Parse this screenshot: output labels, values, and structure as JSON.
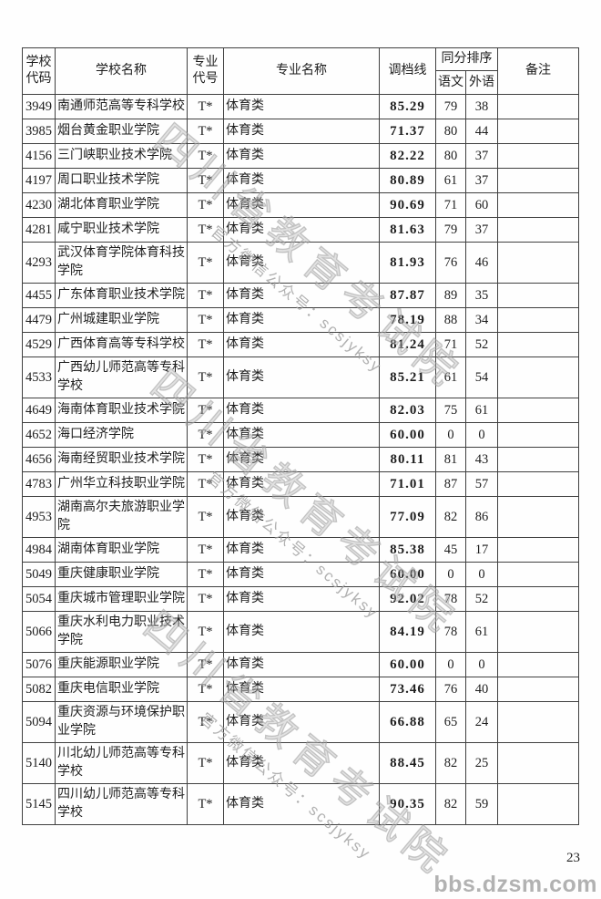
{
  "page": {
    "number": "23",
    "site_watermark": "bbs.dzsm.com"
  },
  "colors": {
    "table_border": "#404040",
    "text": "#1d1d1d",
    "watermark_gray": "#c3c3c3",
    "site_watermark_gray": "#b2b2b2"
  },
  "watermark": {
    "big_text": "四川省教育考试院",
    "small_text": "官方微信公众号：scsjyksy"
  },
  "table": {
    "headers": {
      "school_code": "学校代码",
      "school_name": "学校名称",
      "major_code": "专业代号",
      "major_name": "专业名称",
      "score_line": "调档线",
      "tie_break": "同分排序",
      "chinese": "语文",
      "foreign_lang": "外语",
      "remark": "备注"
    },
    "rows": [
      {
        "code": "3949",
        "name": "南通师范高等专科学校",
        "major_code": "T*",
        "major_name": "体育类",
        "score": "85.29",
        "chinese": "79",
        "foreign": "38",
        "remark": ""
      },
      {
        "code": "3985",
        "name": "烟台黄金职业学院",
        "major_code": "T*",
        "major_name": "体育类",
        "score": "71.37",
        "chinese": "80",
        "foreign": "44",
        "remark": ""
      },
      {
        "code": "4156",
        "name": "三门峡职业技术学院",
        "major_code": "T*",
        "major_name": "体育类",
        "score": "82.22",
        "chinese": "80",
        "foreign": "37",
        "remark": ""
      },
      {
        "code": "4197",
        "name": "周口职业技术学院",
        "major_code": "T*",
        "major_name": "体育类",
        "score": "80.89",
        "chinese": "61",
        "foreign": "37",
        "remark": ""
      },
      {
        "code": "4230",
        "name": "湖北体育职业学院",
        "major_code": "T*",
        "major_name": "体育类",
        "score": "90.69",
        "chinese": "71",
        "foreign": "60",
        "remark": ""
      },
      {
        "code": "4281",
        "name": "咸宁职业技术学院",
        "major_code": "T*",
        "major_name": "体育类",
        "score": "81.63",
        "chinese": "79",
        "foreign": "37",
        "remark": ""
      },
      {
        "code": "4293",
        "name": "武汉体育学院体育科技学院",
        "major_code": "T*",
        "major_name": "体育类",
        "score": "81.93",
        "chinese": "76",
        "foreign": "46",
        "remark": ""
      },
      {
        "code": "4455",
        "name": "广东体育职业技术学院",
        "major_code": "T*",
        "major_name": "体育类",
        "score": "87.87",
        "chinese": "89",
        "foreign": "35",
        "remark": ""
      },
      {
        "code": "4479",
        "name": "广州城建职业学院",
        "major_code": "T*",
        "major_name": "体育类",
        "score": "78.19",
        "chinese": "88",
        "foreign": "34",
        "remark": ""
      },
      {
        "code": "4529",
        "name": "广西体育高等专科学校",
        "major_code": "T*",
        "major_name": "体育类",
        "score": "81.24",
        "chinese": "71",
        "foreign": "52",
        "remark": ""
      },
      {
        "code": "4533",
        "name": "广西幼儿师范高等专科学校",
        "major_code": "T*",
        "major_name": "体育类",
        "score": "85.21",
        "chinese": "61",
        "foreign": "54",
        "remark": ""
      },
      {
        "code": "4649",
        "name": "海南体育职业技术学院",
        "major_code": "T*",
        "major_name": "体育类",
        "score": "82.03",
        "chinese": "75",
        "foreign": "61",
        "remark": ""
      },
      {
        "code": "4652",
        "name": "海口经济学院",
        "major_code": "T*",
        "major_name": "体育类",
        "score": "60.00",
        "chinese": "0",
        "foreign": "0",
        "remark": ""
      },
      {
        "code": "4656",
        "name": "海南经贸职业技术学院",
        "major_code": "T*",
        "major_name": "体育类",
        "score": "80.11",
        "chinese": "81",
        "foreign": "43",
        "remark": ""
      },
      {
        "code": "4783",
        "name": "广州华立科技职业学院",
        "major_code": "T*",
        "major_name": "体育类",
        "score": "71.01",
        "chinese": "87",
        "foreign": "57",
        "remark": ""
      },
      {
        "code": "4953",
        "name": "湖南高尔夫旅游职业学院",
        "major_code": "T*",
        "major_name": "体育类",
        "score": "77.09",
        "chinese": "82",
        "foreign": "86",
        "remark": ""
      },
      {
        "code": "4984",
        "name": "湖南体育职业学院",
        "major_code": "T*",
        "major_name": "体育类",
        "score": "85.38",
        "chinese": "45",
        "foreign": "17",
        "remark": ""
      },
      {
        "code": "5049",
        "name": "重庆健康职业学院",
        "major_code": "T*",
        "major_name": "体育类",
        "score": "60.00",
        "chinese": "0",
        "foreign": "0",
        "remark": ""
      },
      {
        "code": "5054",
        "name": "重庆城市管理职业学院",
        "major_code": "T*",
        "major_name": "体育类",
        "score": "92.02",
        "chinese": "78",
        "foreign": "52",
        "remark": ""
      },
      {
        "code": "5066",
        "name": "重庆水利电力职业技术学院",
        "major_code": "T*",
        "major_name": "体育类",
        "score": "84.19",
        "chinese": "78",
        "foreign": "61",
        "remark": ""
      },
      {
        "code": "5076",
        "name": "重庆能源职业学院",
        "major_code": "T*",
        "major_name": "体育类",
        "score": "60.00",
        "chinese": "0",
        "foreign": "0",
        "remark": ""
      },
      {
        "code": "5082",
        "name": "重庆电信职业学院",
        "major_code": "T*",
        "major_name": "体育类",
        "score": "73.46",
        "chinese": "76",
        "foreign": "40",
        "remark": ""
      },
      {
        "code": "5094",
        "name": "重庆资源与环境保护职业学院",
        "major_code": "T*",
        "major_name": "体育类",
        "score": "66.88",
        "chinese": "65",
        "foreign": "24",
        "remark": ""
      },
      {
        "code": "5140",
        "name": "川北幼儿师范高等专科学校",
        "major_code": "T*",
        "major_name": "体育类",
        "score": "88.45",
        "chinese": "82",
        "foreign": "25",
        "remark": ""
      },
      {
        "code": "5145",
        "name": "四川幼儿师范高等专科学校",
        "major_code": "T*",
        "major_name": "体育类",
        "score": "90.35",
        "chinese": "82",
        "foreign": "59",
        "remark": ""
      }
    ]
  }
}
